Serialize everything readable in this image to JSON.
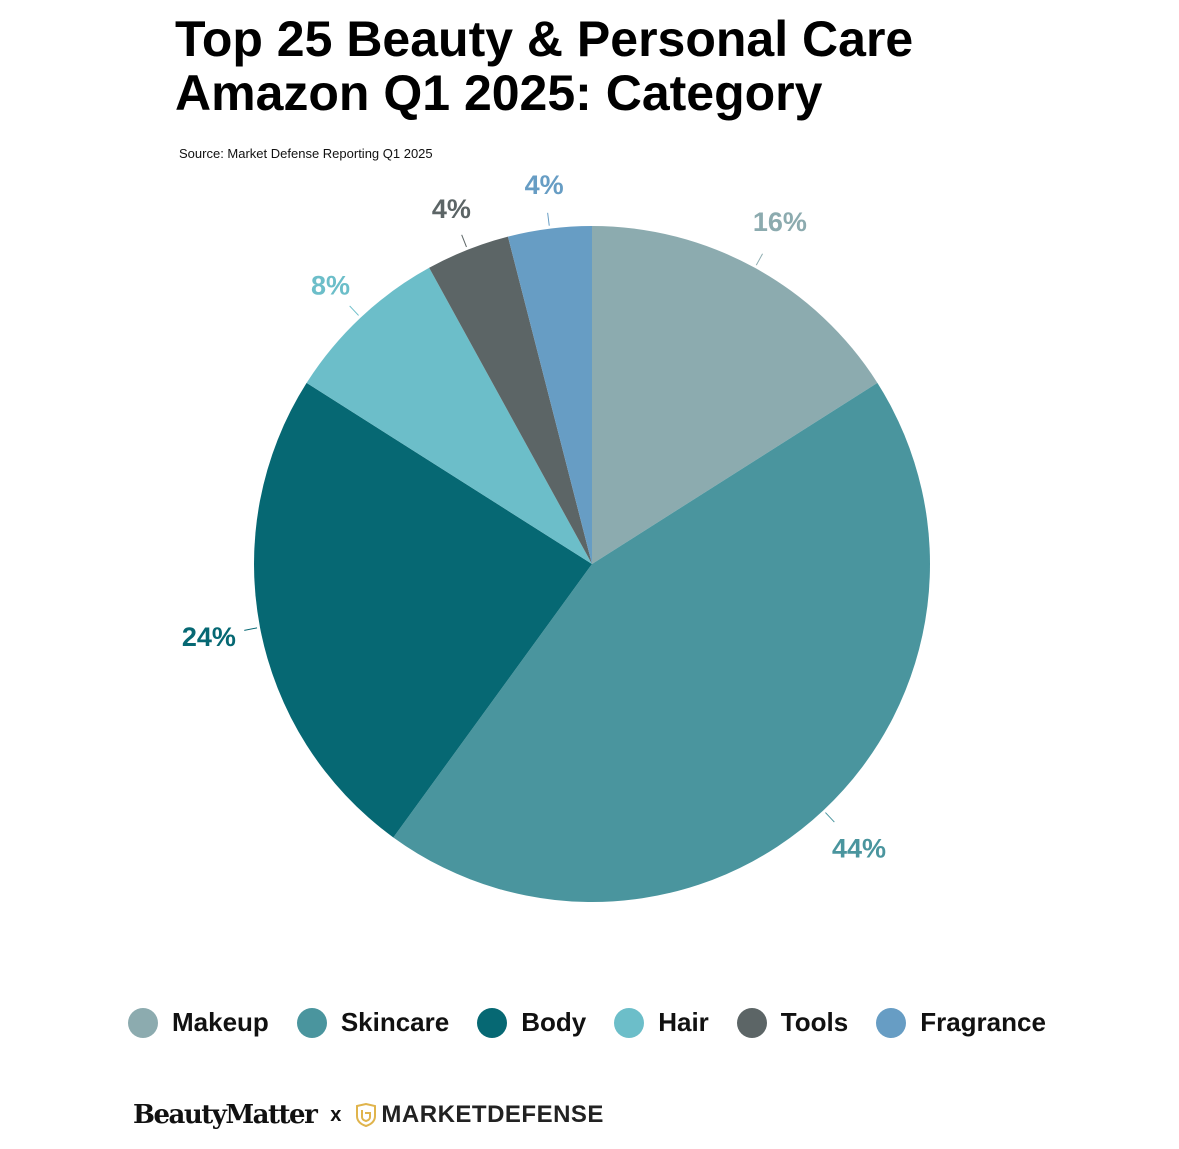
{
  "title_line1": "Top 25 Beauty & Personal Care",
  "title_line2": "Amazon Q1 2025: Category",
  "source": "Source: Market Defense Reporting Q1 2025",
  "chart_data": {
    "type": "pie",
    "title": "Top 25 Beauty & Personal Care Amazon Q1 2025: Category",
    "start": "top, clockwise",
    "legend_placement": "bottom",
    "slices": [
      {
        "name": "Makeup",
        "value": 16,
        "label": "16%",
        "color": "#8cabaf"
      },
      {
        "name": "Skincare",
        "value": 44,
        "label": "44%",
        "color": "#4a959e"
      },
      {
        "name": "Body",
        "value": 24,
        "label": "24%",
        "color": "#066873"
      },
      {
        "name": "Hair",
        "value": 8,
        "label": "8%",
        "color": "#6cbec9"
      },
      {
        "name": "Tools",
        "value": 4,
        "label": "4%",
        "color": "#5c6566"
      },
      {
        "name": "Fragrance",
        "value": 4,
        "label": "4%",
        "color": "#679dc4"
      }
    ]
  },
  "footer": {
    "logo1": "BeautyMatter",
    "separator": "x",
    "logo2": "MARKETDEFENSE"
  }
}
